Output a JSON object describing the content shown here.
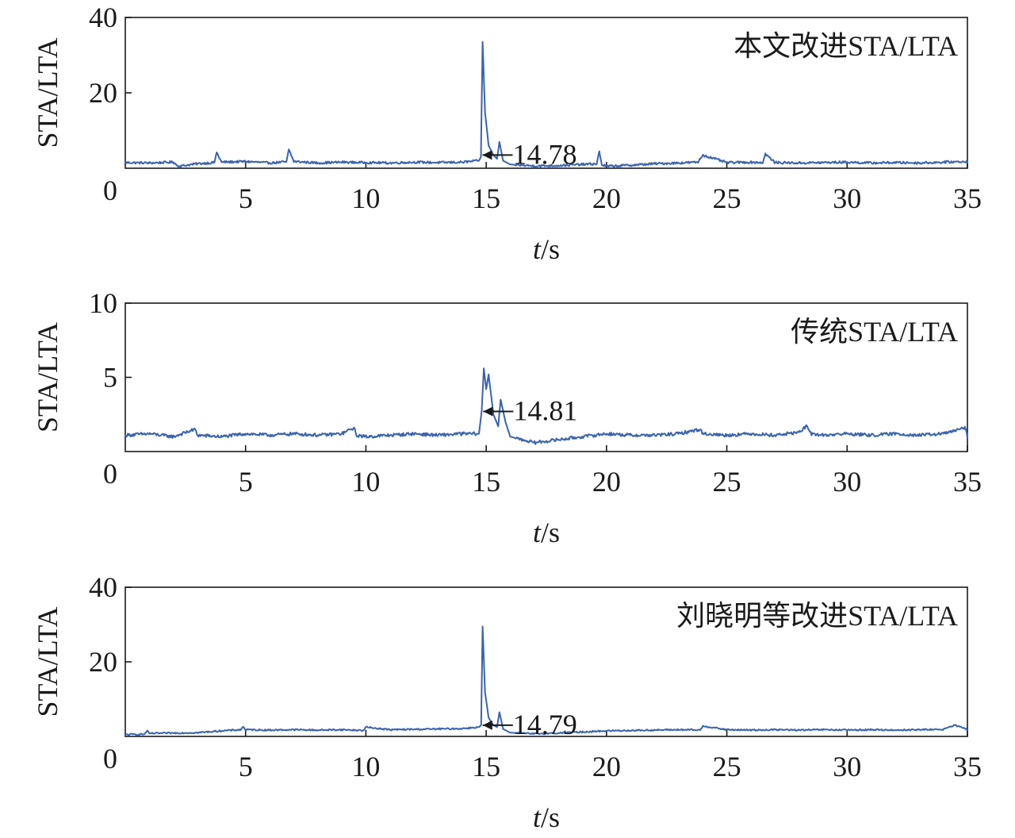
{
  "chart_data": [
    {
      "type": "line",
      "title": "本文改进STA/LTA",
      "xlabel_italic": "t",
      "xlabel_unit": "/s",
      "ylabel": "STA/LTA",
      "xlim": [
        0,
        35
      ],
      "ylim": [
        0,
        40
      ],
      "xticks": [
        5,
        10,
        15,
        20,
        25,
        30,
        35
      ],
      "yticks": [
        20,
        40
      ],
      "origin_label": "0",
      "grid": false,
      "series": [
        {
          "color": "#3a64ad",
          "baseline": 1.5,
          "noise": 0.6,
          "x": [
            0,
            1,
            2,
            2.2,
            3,
            3.7,
            3.8,
            4,
            5,
            6,
            6.7,
            6.8,
            7,
            8,
            9,
            10,
            11,
            12,
            13,
            14,
            14.7,
            14.78,
            14.85,
            14.95,
            15.1,
            15.3,
            15.45,
            15.55,
            15.7,
            16,
            17,
            18,
            19,
            19.6,
            19.7,
            19.8,
            20,
            21,
            22,
            23,
            23.8,
            24,
            25,
            26,
            26.5,
            26.6,
            27,
            28,
            29,
            30,
            31,
            32,
            33,
            34,
            35
          ],
          "y": [
            1.5,
            1.4,
            1.6,
            0.5,
            1.2,
            1.5,
            4.2,
            1.6,
            1.8,
            1.4,
            1.7,
            5.0,
            1.8,
            1.4,
            1.6,
            1.5,
            1.4,
            1.6,
            1.5,
            1.6,
            2.0,
            3.0,
            33.5,
            15.0,
            6.0,
            3.5,
            2.5,
            7.0,
            2.0,
            1.0,
            0.6,
            0.7,
            1.0,
            1.2,
            4.5,
            1.0,
            0.5,
            0.8,
            1.2,
            1.4,
            1.6,
            3.5,
            1.5,
            1.6,
            1.5,
            3.8,
            1.5,
            1.4,
            1.5,
            1.6,
            1.4,
            1.5,
            1.4,
            1.6,
            1.8
          ]
        }
      ],
      "annotation": {
        "x": 14.78,
        "y": 3.5,
        "label": "14.78"
      }
    },
    {
      "type": "line",
      "title": "传统STA/LTA",
      "xlabel_italic": "t",
      "xlabel_unit": "/s",
      "ylabel": "STA/LTA",
      "xlim": [
        0,
        35
      ],
      "ylim": [
        0,
        10
      ],
      "xticks": [
        5,
        10,
        15,
        20,
        25,
        30,
        35
      ],
      "yticks": [
        5,
        10
      ],
      "origin_label": "0",
      "grid": false,
      "series": [
        {
          "color": "#3a64ad",
          "baseline": 1.1,
          "noise": 0.22,
          "x": [
            0,
            1,
            2,
            2.9,
            3.0,
            4,
            5,
            6,
            7,
            8,
            9,
            9.5,
            9.6,
            10,
            11,
            12,
            13,
            14,
            14.7,
            14.81,
            14.9,
            15.0,
            15.1,
            15.3,
            15.5,
            15.6,
            15.8,
            16,
            16.5,
            17,
            18,
            19,
            20,
            21,
            22,
            23,
            23.9,
            24,
            25,
            26,
            27,
            28,
            28.3,
            28.5,
            29,
            30,
            31,
            32,
            33,
            34,
            34.9,
            35
          ],
          "y": [
            1.1,
            1.2,
            1.0,
            1.5,
            1.1,
            1.0,
            1.2,
            1.1,
            1.2,
            1.1,
            1.2,
            1.6,
            1.1,
            1.0,
            1.1,
            1.2,
            1.1,
            1.2,
            1.2,
            2.7,
            5.6,
            4.2,
            5.2,
            2.5,
            1.7,
            3.5,
            2.0,
            1.0,
            0.8,
            0.6,
            0.8,
            1.0,
            1.2,
            1.1,
            1.1,
            1.2,
            1.5,
            1.2,
            1.1,
            1.2,
            1.1,
            1.3,
            1.7,
            1.2,
            1.1,
            1.2,
            1.1,
            1.2,
            1.1,
            1.2,
            1.6,
            1.0
          ]
        }
      ],
      "annotation": {
        "x": 14.81,
        "y": 2.7,
        "label": "14.81"
      }
    },
    {
      "type": "line",
      "title": "刘晓明等改进STA/LTA",
      "xlabel_italic": "t",
      "xlabel_unit": "/s",
      "ylabel": "STA/LTA",
      "xlim": [
        0,
        35
      ],
      "ylim": [
        0,
        40
      ],
      "xticks": [
        5,
        10,
        15,
        20,
        25,
        30,
        35
      ],
      "yticks": [
        20,
        40
      ],
      "origin_label": "0",
      "grid": false,
      "series": [
        {
          "color": "#3a64ad",
          "baseline": 1.7,
          "noise": 0.4,
          "x": [
            0,
            0.8,
            0.9,
            1.0,
            2,
            3,
            4,
            4.8,
            4.9,
            5,
            6,
            7,
            8,
            9,
            9.9,
            10,
            11,
            12,
            13,
            14,
            14.7,
            14.79,
            14.85,
            14.95,
            15.1,
            15.3,
            15.45,
            15.55,
            15.7,
            16,
            17,
            18,
            19,
            20,
            21,
            22,
            23,
            23.9,
            24,
            25,
            26,
            27,
            28,
            29,
            30,
            31,
            32,
            33,
            34,
            34.5,
            35
          ],
          "y": [
            0.5,
            0.6,
            1.5,
            0.8,
            0.9,
            1.0,
            1.5,
            1.8,
            2.6,
            1.8,
            1.7,
            1.8,
            1.7,
            1.8,
            1.6,
            2.5,
            1.8,
            1.9,
            2.0,
            2.1,
            2.5,
            3.0,
            29.5,
            12.0,
            5.0,
            3.0,
            2.5,
            6.5,
            2.0,
            1.0,
            0.7,
            0.9,
            1.2,
            1.5,
            1.6,
            1.7,
            1.8,
            1.7,
            2.8,
            1.8,
            1.7,
            1.8,
            1.7,
            1.8,
            1.7,
            1.8,
            1.7,
            1.8,
            1.9,
            3.0,
            1.8
          ]
        }
      ],
      "annotation": {
        "x": 14.79,
        "y": 3.0,
        "label": "14.79"
      }
    }
  ]
}
